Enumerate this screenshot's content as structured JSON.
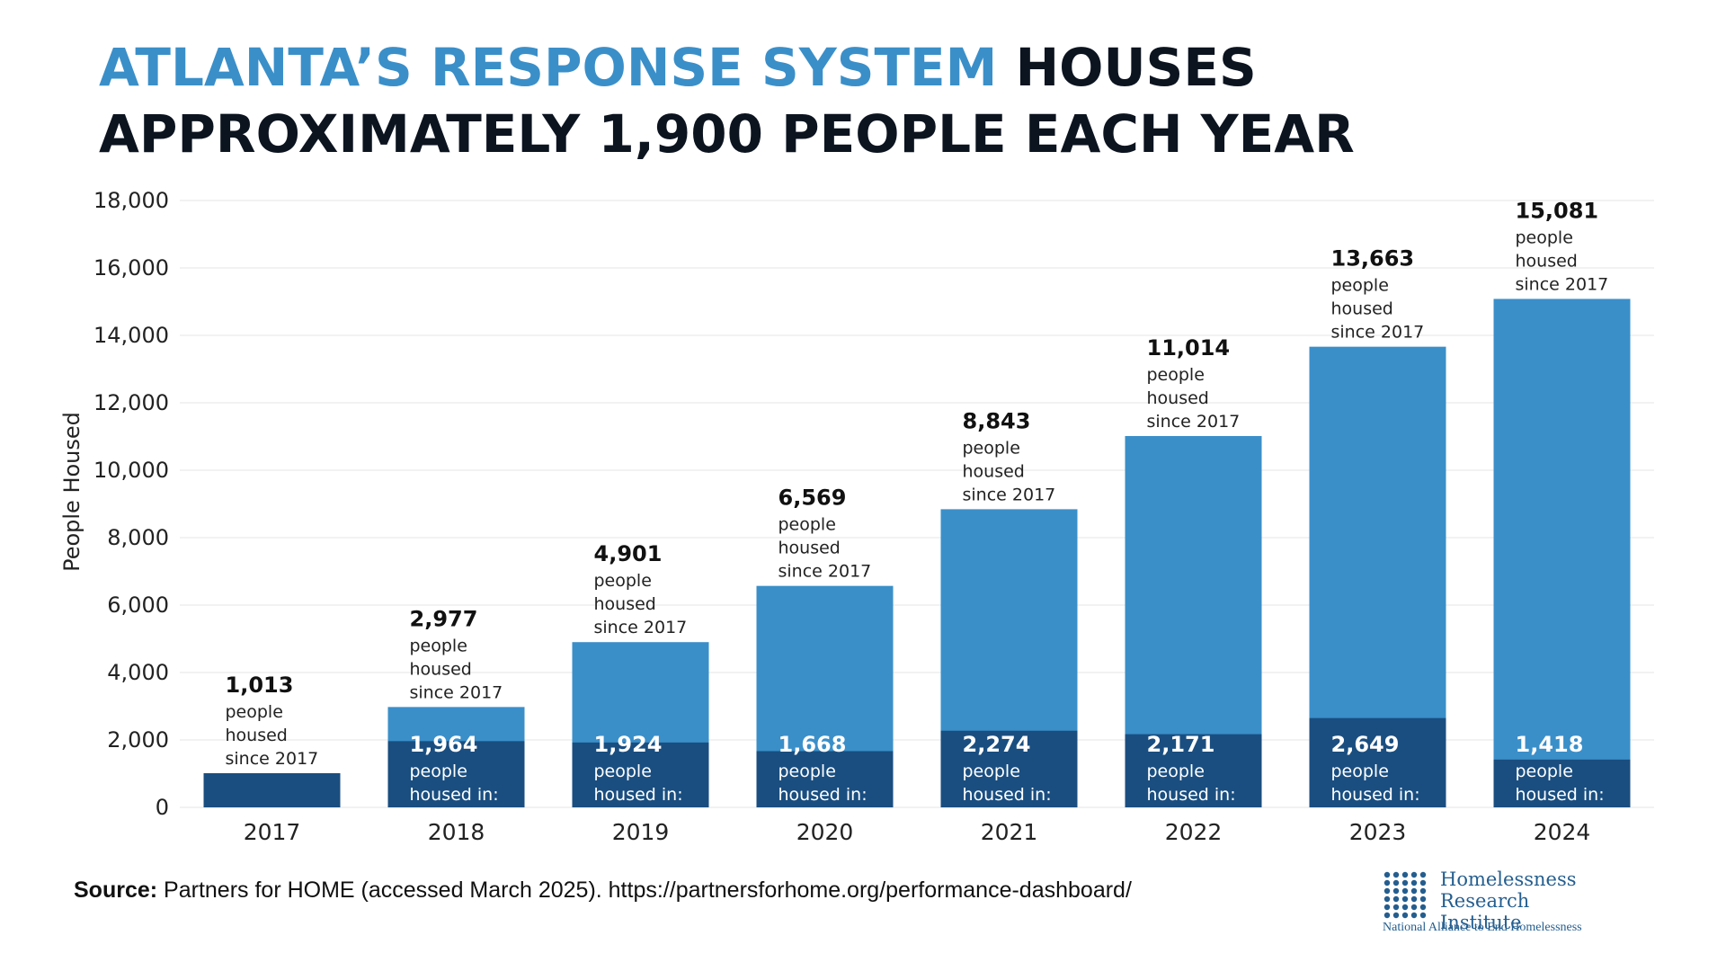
{
  "title": {
    "accent": "ATLANTA’S RESPONSE SYSTEM",
    "rest_line1": "HOUSES",
    "line2": "APPROXIMATELY 1,900 PEOPLE EACH YEAR"
  },
  "chart_data": {
    "type": "bar",
    "stacked": true,
    "categories": [
      "2017",
      "2018",
      "2019",
      "2020",
      "2021",
      "2022",
      "2023",
      "2024"
    ],
    "ylabel": "People Housed",
    "ylim": [
      0,
      18000
    ],
    "yticks": [
      0,
      2000,
      4000,
      6000,
      8000,
      10000,
      12000,
      14000,
      16000,
      18000
    ],
    "ytick_labels": [
      "0",
      "2,000",
      "4,000",
      "6,000",
      "8,000",
      "10,000",
      "12,000",
      "14,000",
      "16,000",
      "18,000"
    ],
    "grid": true,
    "series": [
      {
        "values": [
          1013,
          1964,
          1924,
          1668,
          2274,
          2171,
          2649,
          1418
        ],
        "color": "#1a4e80",
        "value_labels": [
          "1,013",
          "1,964",
          "1,924",
          "1,668",
          "2,274",
          "2,171",
          "2,649",
          "1,418"
        ],
        "label_text": [
          "people",
          "housed in:"
        ]
      },
      {
        "values": [
          1013,
          2977,
          4901,
          6569,
          8843,
          11014,
          13663,
          15081
        ],
        "color": "#3a8fc9",
        "value_labels": [
          "1,013",
          "2,977",
          "4,901",
          "6,569",
          "8,843",
          "11,014",
          "13,663",
          "15,081"
        ],
        "label_text": [
          "people",
          "housed",
          "since 2017"
        ]
      }
    ]
  },
  "source": {
    "label": "Source:",
    "text": " Partners for HOME (accessed March 2025). https://partnersforhome.org/performance-dashboard/"
  },
  "logo": {
    "name_line1": "Homelessness",
    "name_line2": "Research Institute",
    "subtitle": "National Alliance to End Homelessness",
    "color": "#245e8f"
  }
}
